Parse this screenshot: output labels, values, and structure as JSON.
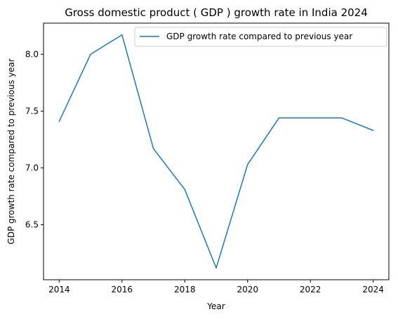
{
  "chart_data": {
    "type": "line",
    "title": "Gross domestic product ( GDP ) growth rate in India 2024",
    "xlabel": "Year",
    "ylabel": "GDP growth rate compared to previous year",
    "x": [
      2014,
      2015,
      2016,
      2017,
      2018,
      2019,
      2020,
      2021,
      2022,
      2023,
      2024
    ],
    "series": [
      {
        "name": "GDP growth rate compared to previous year",
        "color": "#1f77b4",
        "values": [
          7.41,
          8.0,
          8.17,
          7.17,
          6.81,
          6.12,
          7.03,
          7.44,
          7.44,
          7.44,
          7.33
        ]
      }
    ],
    "xlim": [
      2013.5,
      2024.5
    ],
    "ylim": [
      6.0165,
      8.2735
    ],
    "x_ticks": [
      "2014",
      "2016",
      "2018",
      "2020",
      "2022",
      "2024"
    ],
    "y_ticks": [
      "6.5",
      "7.0",
      "7.5",
      "8.0"
    ],
    "grid": false,
    "legend_position": "top-right"
  }
}
